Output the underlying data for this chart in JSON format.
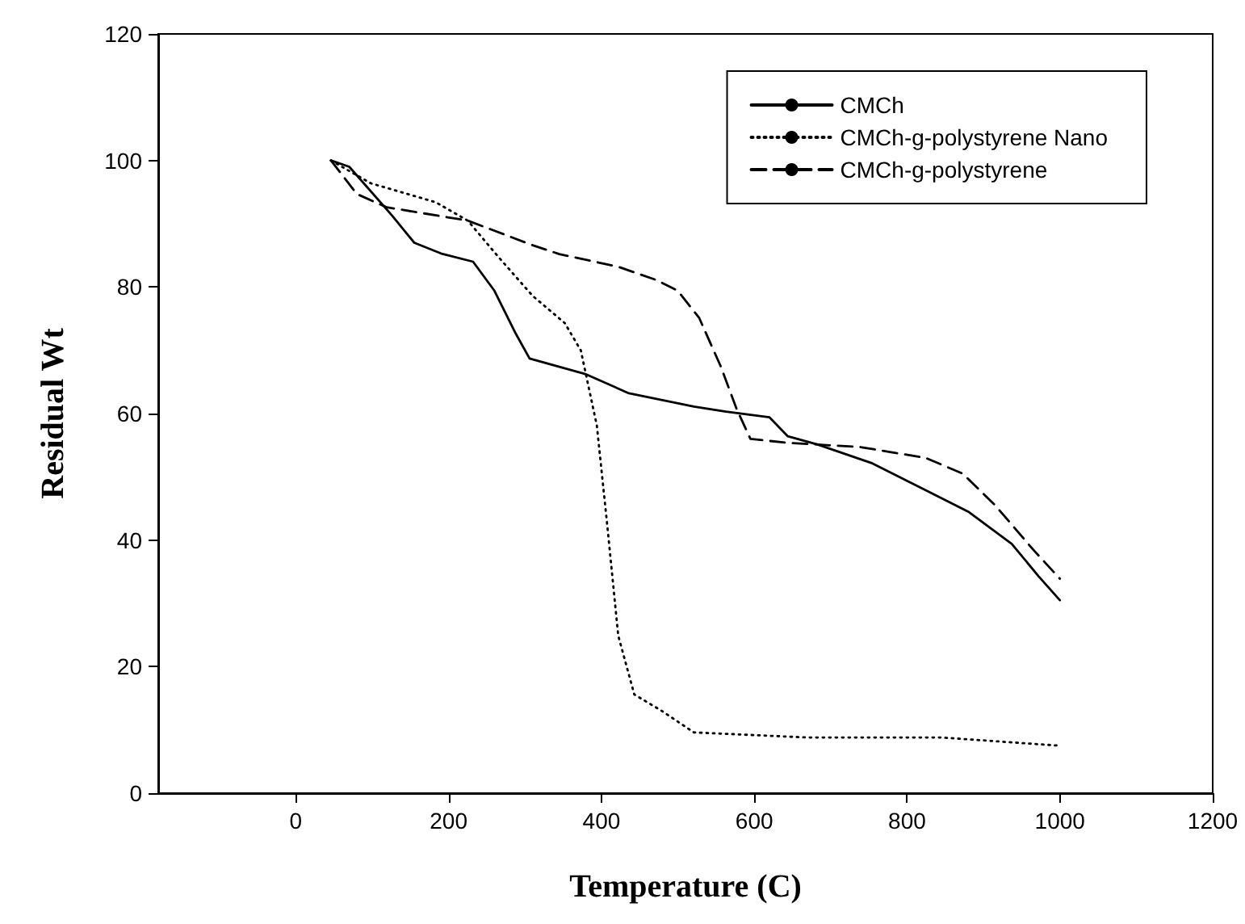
{
  "chart_data": {
    "type": "line",
    "xlabel": "Temperature (C)",
    "ylabel": "Residual Wt",
    "xlim": [
      -180,
      1200
    ],
    "xticks": [
      0,
      200,
      400,
      600,
      800,
      1000,
      1200
    ],
    "ylim": [
      0,
      120
    ],
    "yticks": [
      0,
      20,
      40,
      60,
      80,
      100,
      120
    ],
    "grid": false,
    "legend": "top right",
    "marker": "none",
    "series": [
      {
        "name": "CMCh",
        "color": "#000000",
        "line_style": "solid",
        "x": [
          46,
          70,
          126,
          155,
          190,
          232,
          260,
          288,
          306,
          380,
          436,
          521,
          563,
          620,
          644,
          683,
          753,
          824,
          880,
          937,
          972,
          1000
        ],
        "values": [
          100,
          99,
          91.3,
          87,
          85.3,
          84,
          79.4,
          72.6,
          68.7,
          66.2,
          63.2,
          61.1,
          60.3,
          59.4,
          56.4,
          55.1,
          52.2,
          47.9,
          44.5,
          39.4,
          34.3,
          30.5
        ]
      },
      {
        "name": "CMCh-g-polystyrene Nano",
        "color": "#000000",
        "line_style": "dotted",
        "x": [
          46,
          98,
          183,
          225,
          267,
          310,
          352,
          373,
          394,
          408,
          422,
          443,
          479,
          521,
          669,
          845,
          1000
        ],
        "values": [
          100,
          96.4,
          93.4,
          90.5,
          84.5,
          78.6,
          74.3,
          70,
          58.1,
          41.9,
          24.9,
          15.6,
          13,
          9.6,
          8.8,
          8.8,
          7.5
        ]
      },
      {
        "name": "CMCh-g-polystyrene",
        "color": "#000000",
        "line_style": "dashed",
        "x": [
          46,
          80,
          119,
          225,
          310,
          345,
          422,
          472,
          500,
          528,
          556,
          577,
          595,
          641,
          739,
          824,
          873,
          916,
          965,
          1000
        ],
        "values": [
          100,
          94.7,
          92.6,
          90.5,
          86.6,
          85.2,
          83.2,
          81.1,
          79.4,
          75.1,
          67.5,
          60.7,
          56,
          55.4,
          54.7,
          53,
          50.5,
          45.4,
          38.5,
          33.9
        ]
      }
    ]
  }
}
